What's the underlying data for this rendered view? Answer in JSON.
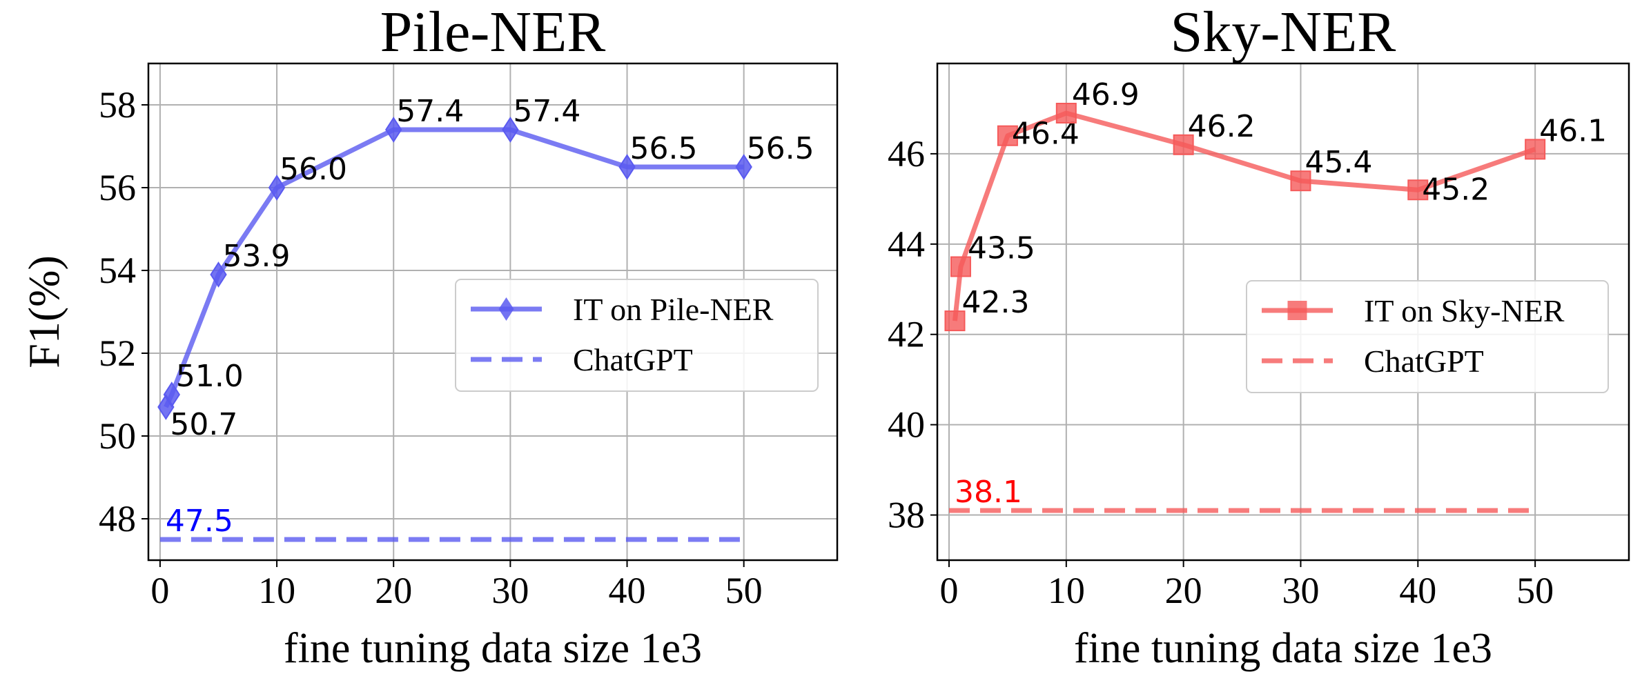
{
  "chart_data": [
    {
      "type": "line",
      "title": "Pile-NER",
      "xlabel": "fine tuning data size  1e3",
      "ylabel": "F1(%)",
      "xlim": [
        -1,
        58
      ],
      "ylim": [
        47.0,
        59.0
      ],
      "xticks": [
        0,
        10,
        20,
        30,
        40,
        50
      ],
      "yticks": [
        48,
        50,
        52,
        54,
        56,
        58
      ],
      "grid": true,
      "legend_position": "center-right",
      "series": [
        {
          "name": "IT on Pile-NER",
          "style": "solid",
          "marker": "diamond",
          "color": "#5A5AF0",
          "x": [
            0.5,
            1,
            5,
            10,
            20,
            30,
            40,
            50
          ],
          "y": [
            50.7,
            51.0,
            53.9,
            56.0,
            57.4,
            57.4,
            56.5,
            56.5
          ],
          "labels": [
            "50.7",
            "51.0",
            "53.9",
            "56.0",
            "57.4",
            "57.4",
            "56.5",
            "56.5"
          ]
        },
        {
          "name": "ChatGPT",
          "style": "dashed",
          "color": "#5A5AF0",
          "x": [
            0,
            50
          ],
          "y": [
            47.5,
            47.5
          ],
          "label": "47.5",
          "label_color": "#0000FF"
        }
      ]
    },
    {
      "type": "line",
      "title": "Sky-NER",
      "xlabel": "fine tuning data size  1e3",
      "ylabel": "",
      "xlim": [
        -1,
        58
      ],
      "ylim": [
        37.0,
        48.0
      ],
      "xticks": [
        0,
        10,
        20,
        30,
        40,
        50
      ],
      "yticks": [
        38,
        40,
        42,
        44,
        46
      ],
      "grid": true,
      "legend_position": "center-right",
      "series": [
        {
          "name": "IT on Sky-NER",
          "style": "solid",
          "marker": "square",
          "color": "#F55A5A",
          "x": [
            0.5,
            1,
            5,
            10,
            20,
            30,
            40,
            50
          ],
          "y": [
            42.3,
            43.5,
            46.4,
            46.9,
            46.2,
            45.4,
            45.2,
            46.1
          ],
          "labels": [
            "42.3",
            "43.5",
            "46.4",
            "46.9",
            "46.2",
            "45.4",
            "45.2",
            "46.1"
          ]
        },
        {
          "name": "ChatGPT",
          "style": "dashed",
          "color": "#F55A5A",
          "x": [
            0,
            50
          ],
          "y": [
            38.1,
            38.1
          ],
          "label": "38.1",
          "label_color": "#FF0000"
        }
      ]
    }
  ]
}
